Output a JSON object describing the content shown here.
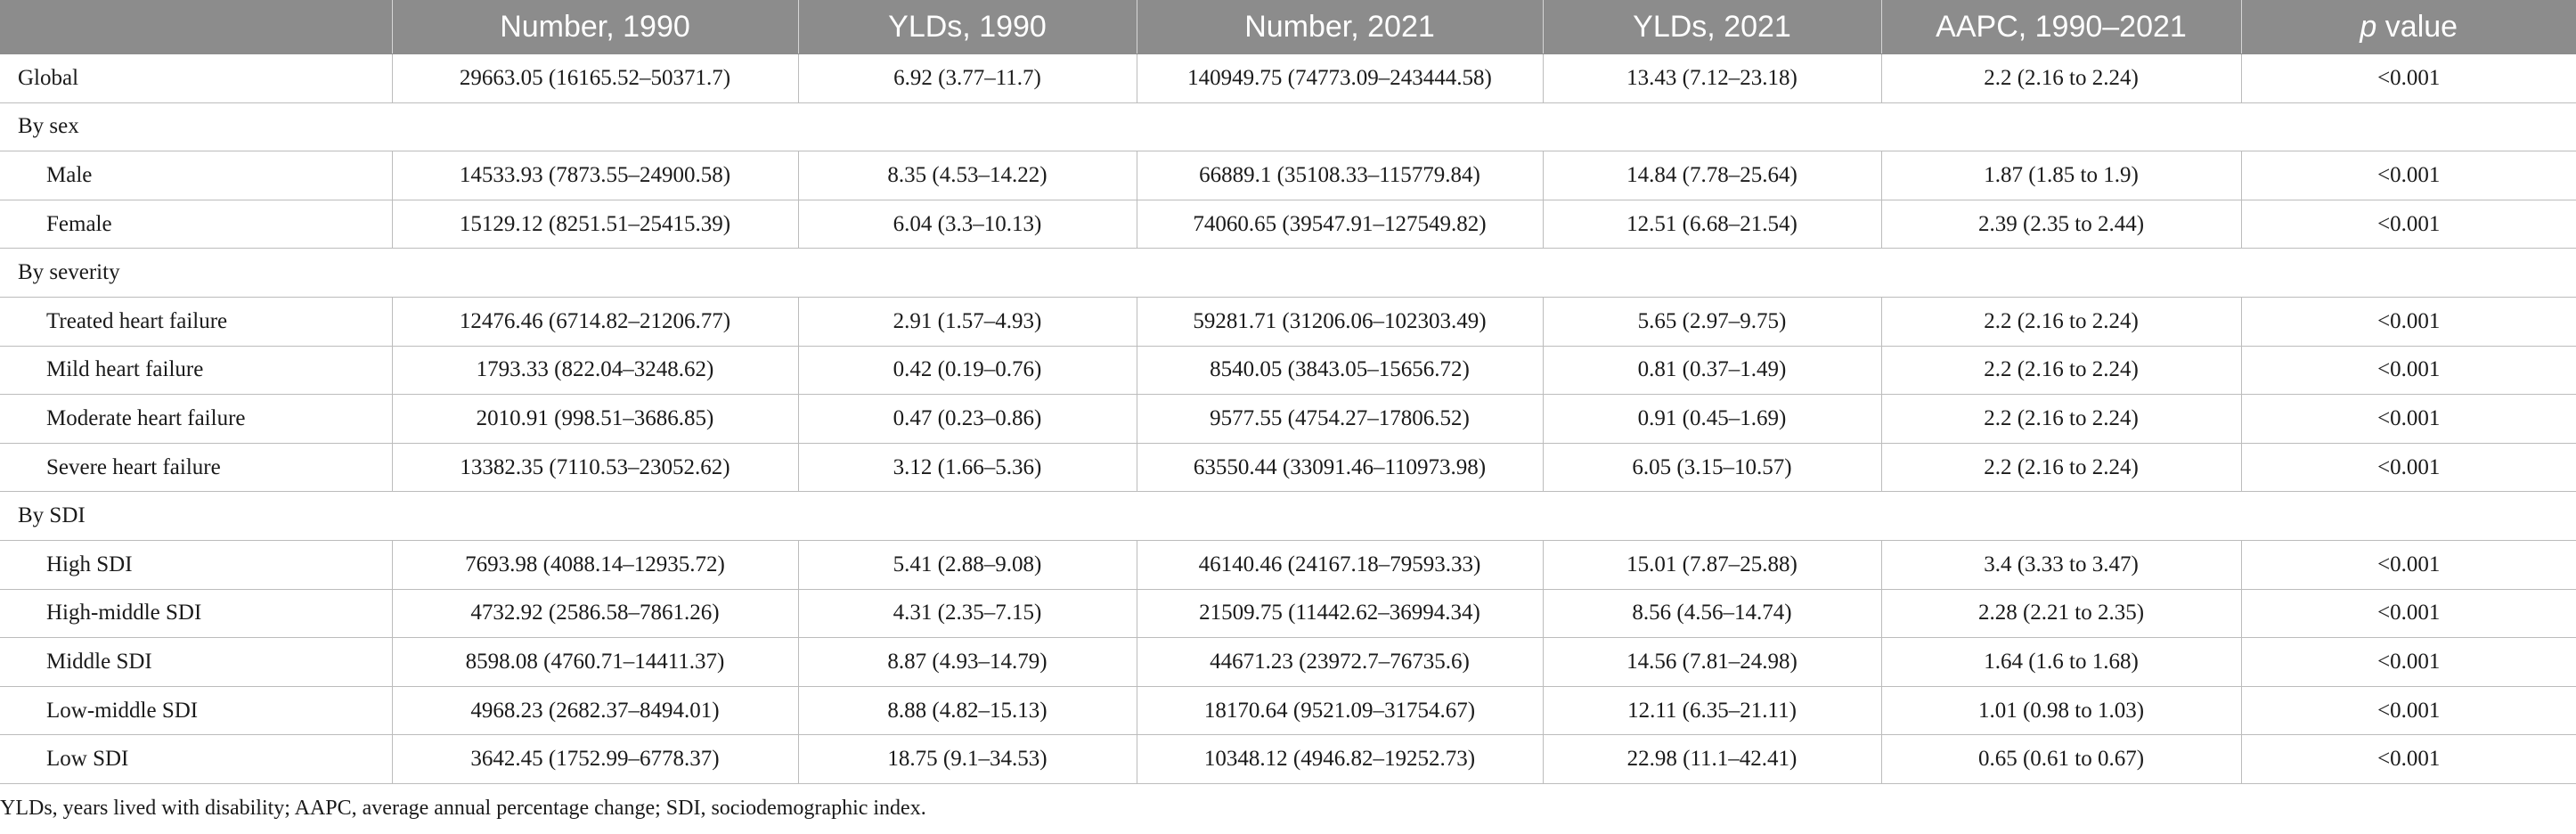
{
  "table": {
    "columns": [
      "",
      "Number, 1990",
      "YLDs, 1990",
      "Number, 2021",
      "YLDs, 2021",
      "AAPC, 1990–2021"
    ],
    "last_column": {
      "italic": "p",
      "rest": " value"
    },
    "rows": [
      {
        "type": "data",
        "indent": false,
        "cells": [
          "Global",
          "29663.05 (16165.52–50371.7)",
          "6.92 (3.77–11.7)",
          "140949.75 (74773.09–243444.58)",
          "13.43 (7.12–23.18)",
          "2.2 (2.16 to 2.24)",
          "<0.001"
        ]
      },
      {
        "type": "group",
        "label": "By sex"
      },
      {
        "type": "data",
        "indent": true,
        "cells": [
          "Male",
          "14533.93 (7873.55–24900.58)",
          "8.35 (4.53–14.22)",
          "66889.1 (35108.33–115779.84)",
          "14.84 (7.78–25.64)",
          "1.87 (1.85 to 1.9)",
          "<0.001"
        ]
      },
      {
        "type": "data",
        "indent": true,
        "cells": [
          "Female",
          "15129.12 (8251.51–25415.39)",
          "6.04 (3.3–10.13)",
          "74060.65 (39547.91–127549.82)",
          "12.51 (6.68–21.54)",
          "2.39 (2.35 to 2.44)",
          "<0.001"
        ]
      },
      {
        "type": "group",
        "label": "By severity"
      },
      {
        "type": "data",
        "indent": true,
        "cells": [
          "Treated heart failure",
          "12476.46 (6714.82–21206.77)",
          "2.91 (1.57–4.93)",
          "59281.71 (31206.06–102303.49)",
          "5.65 (2.97–9.75)",
          "2.2 (2.16 to 2.24)",
          "<0.001"
        ]
      },
      {
        "type": "data",
        "indent": true,
        "cells": [
          "Mild heart failure",
          "1793.33 (822.04–3248.62)",
          "0.42 (0.19–0.76)",
          "8540.05 (3843.05–15656.72)",
          "0.81 (0.37–1.49)",
          "2.2 (2.16 to 2.24)",
          "<0.001"
        ]
      },
      {
        "type": "data",
        "indent": true,
        "cells": [
          "Moderate heart failure",
          "2010.91 (998.51–3686.85)",
          "0.47 (0.23–0.86)",
          "9577.55 (4754.27–17806.52)",
          "0.91 (0.45–1.69)",
          "2.2 (2.16 to 2.24)",
          "<0.001"
        ]
      },
      {
        "type": "data",
        "indent": true,
        "cells": [
          "Severe heart failure",
          "13382.35 (7110.53–23052.62)",
          "3.12 (1.66–5.36)",
          "63550.44 (33091.46–110973.98)",
          "6.05 (3.15–10.57)",
          "2.2 (2.16 to 2.24)",
          "<0.001"
        ]
      },
      {
        "type": "group",
        "label": "By SDI"
      },
      {
        "type": "data",
        "indent": true,
        "cells": [
          "High SDI",
          "7693.98 (4088.14–12935.72)",
          "5.41 (2.88–9.08)",
          "46140.46 (24167.18–79593.33)",
          "15.01 (7.87–25.88)",
          "3.4 (3.33 to 3.47)",
          "<0.001"
        ]
      },
      {
        "type": "data",
        "indent": true,
        "cells": [
          "High-middle SDI",
          "4732.92 (2586.58–7861.26)",
          "4.31 (2.35–7.15)",
          "21509.75 (11442.62–36994.34)",
          "8.56 (4.56–14.74)",
          "2.28 (2.21 to 2.35)",
          "<0.001"
        ]
      },
      {
        "type": "data",
        "indent": true,
        "cells": [
          "Middle SDI",
          "8598.08 (4760.71–14411.37)",
          "8.87 (4.93–14.79)",
          "44671.23 (23972.7–76735.6)",
          "14.56 (7.81–24.98)",
          "1.64 (1.6 to 1.68)",
          "<0.001"
        ]
      },
      {
        "type": "data",
        "indent": true,
        "cells": [
          "Low-middle SDI",
          "4968.23 (2682.37–8494.01)",
          "8.88 (4.82–15.13)",
          "18170.64 (9521.09–31754.67)",
          "12.11 (6.35–21.11)",
          "1.01 (0.98 to 1.03)",
          "<0.001"
        ]
      },
      {
        "type": "data",
        "indent": true,
        "cells": [
          "Low SDI",
          "3642.45 (1752.99–6778.37)",
          "18.75 (9.1–34.53)",
          "10348.12 (4946.82–19252.73)",
          "22.98 (11.1–42.41)",
          "0.65 (0.61 to 0.67)",
          "<0.001"
        ]
      }
    ]
  },
  "footnote": "YLDs, years lived with disability; AAPC, average annual percentage change; SDI, sociodemographic index."
}
